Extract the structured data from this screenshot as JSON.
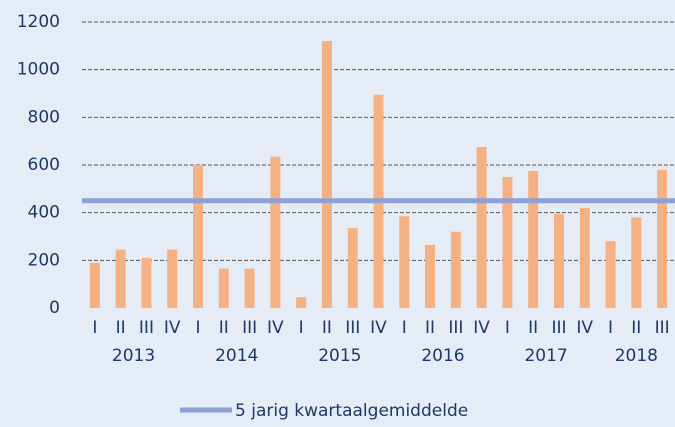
{
  "chart_data": {
    "type": "bar",
    "categories": [
      "I",
      "II",
      "III",
      "IV",
      "I",
      "II",
      "III",
      "IV",
      "I",
      "II",
      "III",
      "IV",
      "I",
      "II",
      "III",
      "IV",
      "I",
      "II",
      "III",
      "IV",
      "I",
      "II",
      "III"
    ],
    "groups": [
      "2013",
      "2014",
      "2015",
      "2016",
      "2017",
      "2018"
    ],
    "series": [
      {
        "color": "#f5b183",
        "values": [
          190,
          245,
          210,
          245,
          600,
          165,
          165,
          635,
          45,
          1120,
          335,
          895,
          385,
          265,
          320,
          675,
          550,
          575,
          395,
          420,
          280,
          380,
          580
        ]
      },
      {
        "name": "5 jarig kwartaalgemiddelde",
        "type": "line",
        "color": "#8ea0d8",
        "values": [
          450,
          450,
          450,
          450,
          450,
          450,
          450,
          450,
          450,
          450,
          450,
          450,
          450,
          450,
          450,
          450,
          450,
          450,
          450,
          450,
          450,
          450,
          450
        ]
      }
    ],
    "ylim": [
      0,
      1200
    ],
    "yticks": [
      0,
      200,
      400,
      600,
      800,
      1000,
      1200
    ],
    "grid": true
  }
}
